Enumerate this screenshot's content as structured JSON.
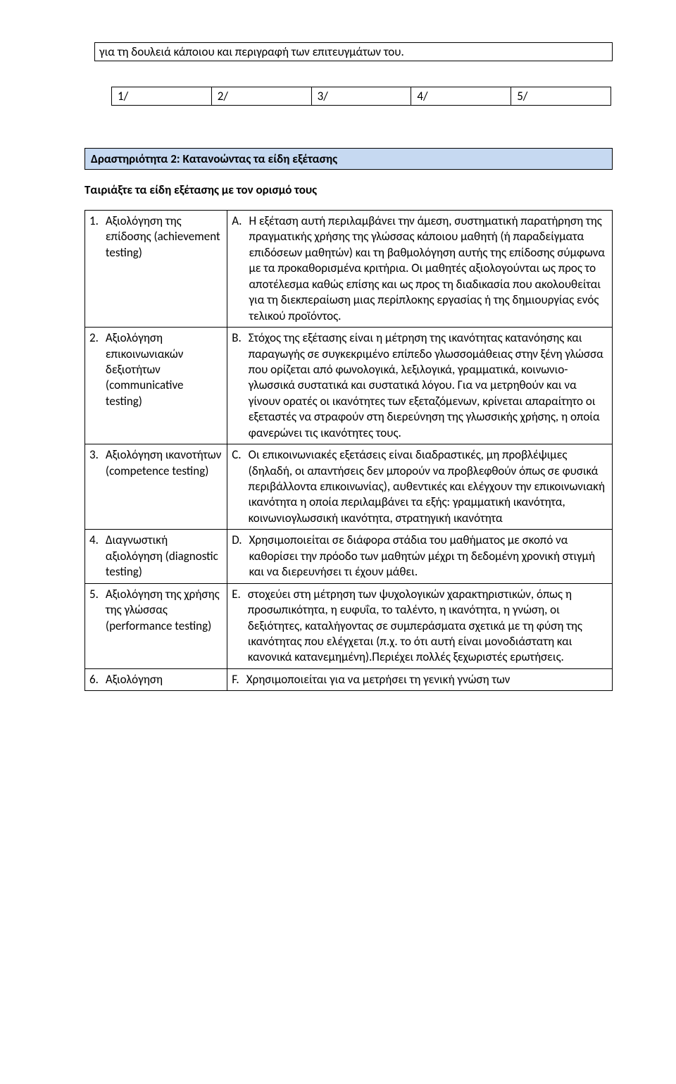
{
  "top_text": "για τη δουλειά κάποιου και περιγραφή των επιτευγμάτων του.",
  "rating": [
    "1/",
    "2/",
    "3/",
    "4/",
    "5/"
  ],
  "activity_title": "Δραστηριότητα 2: Κατανοώντας τα είδη εξέτασης",
  "instruction": "Ταιριάξτε τα είδη εξέτασης με τον ορισμό τους",
  "rows": [
    {
      "num": "1.",
      "left": "Αξιολόγηση της επίδοσης (achievement testing)",
      "letter": "A.",
      "right": "Η εξέταση αυτή περιλαμβάνει την  άμεση, συστηματική παρατήρηση της πραγματικής χρήσης της γλώσσας κάποιου μαθητή (ή παραδείγματα επιδόσεων μαθητών) και τη βαθμολόγηση αυτής της επίδοσης σύμφωνα με τα προκαθορισμένα κριτήρια. Οι μαθητές αξιολογούνται ως προς το αποτέλεσμα καθώς επίσης και ως προς τη διαδικασία που ακολουθείται για τη διεκπεραίωση μιας περίπλοκης εργασίας ή της δημιουργίας ενός τελικού προϊόντος."
    },
    {
      "num": "2.",
      "left": "Αξιολόγηση επικοινωνιακών δεξιοτήτων (communicative testing)",
      "letter": "B.",
      "right": "Στόχος της εξέτασης είναι η μέτρηση της ικανότητας κατανόησης και παραγωγής σε συγκεκριμένο επίπεδο γλωσσομάθειας στην ξένη γλώσσα που ορίζεται από φωνολογικά, λεξιλογικά, γραμματικά, κοινωνιο-γλωσσικά συστατικά και συστατικά λόγου. Για να μετρηθούν και να γίνουν ορατές οι ικανότητες των εξεταζόμενων, κρίνεται απαραίτητο οι εξεταστές να στραφούν στη διερεύνηση της γλωσσικής χρήσης, η οποία φανερώνει τις ικανότητες τους."
    },
    {
      "num": "3.",
      "left": "Αξιολόγηση ικανοτήτων (competence testing)",
      "letter": "C.",
      "right": "Οι επικοινωνιακές εξετάσεις είναι διαδραστικές, μη προβλέψιμες (δηλαδή, οι απαντήσεις δεν μπορούν να προβλεφθούν όπως σε φυσικά περιβάλλοντα επικοινωνίας), αυθεντικές και ελέγχουν την επικοινωνιακή ικανότητα η οποία περιλαμβάνει τα εξής: γραμματική ικανότητα, κοινωνιογλωσσική ικανότητα, στρατηγική ικανότητα"
    },
    {
      "num": "4.",
      "left": "Διαγνωστική αξιολόγηση (diagnostic testing)",
      "letter": "D.",
      "right": "Χρησιμοποιείται σε διάφορα στάδια του μαθήματος με σκοπό να καθορίσει την πρόοδο των μαθητών μέχρι τη δεδομένη χρονική στιγμή και να διερευνήσει τι έχουν μάθει."
    },
    {
      "num": "5.",
      "left": "Αξιολόγηση της χρήσης της γλώσσας (performance testing)",
      "letter": "E.",
      "right": "στοχεύει στη μέτρηση των ψυχολογικών χαρακτηριστικών, όπως η προσωπικότητα, η ευφυΐα, το ταλέντο, η ικανότητα, η γνώση, οι δεξιότητες, καταλήγοντας σε συμπεράσματα σχετικά με τη φύση της ικανότητας που ελέγχεται (π.χ. το ότι αυτή είναι μονοδιάστατη και κανονικά κατανεμημένη).Περιέχει πολλές ξεχωριστές ερωτήσεις."
    },
    {
      "num": "6.",
      "left": "Αξιολόγηση",
      "letter": "F.",
      "right": "Χρησιμοποιείται για να μετρήσει τη γενική γνώση των"
    }
  ]
}
